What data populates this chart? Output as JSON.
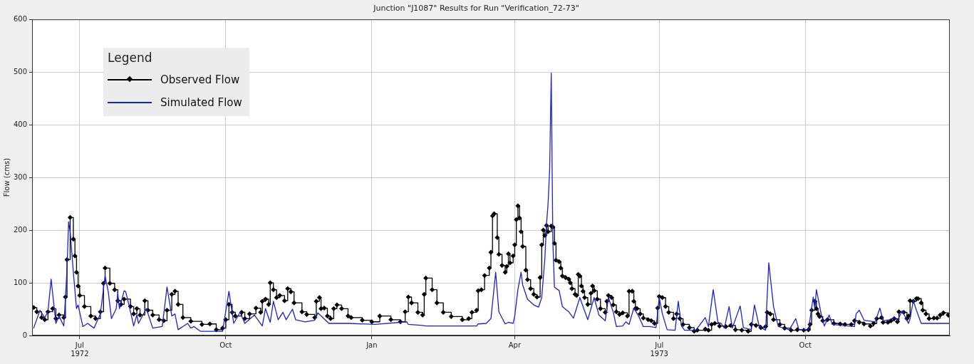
{
  "chart_data": {
    "type": "line",
    "title": "Junction \"J1087\" Results for Run \"Verification_72-73\"",
    "ylabel": "Flow (cms)",
    "legend_title": "Legend",
    "legend": "top left",
    "grid": true,
    "xlim": [
      "1972-06-01",
      "1973-12-31"
    ],
    "xticks": [
      {
        "value": "1972-07-01",
        "label": "Jul\n1972"
      },
      {
        "value": "1972-10-01",
        "label": "Oct"
      },
      {
        "value": "1973-01-01",
        "label": "Jan"
      },
      {
        "value": "1973-04-01",
        "label": "Apr"
      },
      {
        "value": "1973-07-01",
        "label": "Jul\n1973"
      },
      {
        "value": "1973-10-01",
        "label": "Oct"
      }
    ],
    "ylim": [
      0,
      600
    ],
    "yticks": [
      0,
      100,
      200,
      300,
      400,
      500,
      600
    ],
    "series": [
      {
        "name": "Observed Flow",
        "type": "step",
        "marker": "diamond",
        "color": "#000000",
        "x": [
          "1972-06-02",
          "1972-06-04",
          "1972-06-07",
          "1972-06-09",
          "1972-06-11",
          "1972-06-14",
          "1972-06-16",
          "1972-06-18",
          "1972-06-21",
          "1972-06-22",
          "1972-06-23",
          "1972-06-25",
          "1972-06-27",
          "1972-06-28",
          "1972-06-29",
          "1972-06-30",
          "1972-07-01",
          "1972-07-04",
          "1972-07-08",
          "1972-07-11",
          "1972-07-14",
          "1972-07-16",
          "1972-07-17",
          "1972-07-20",
          "1972-07-23",
          "1972-07-25",
          "1972-07-27",
          "1972-07-29",
          "1972-08-02",
          "1972-08-04",
          "1972-08-06",
          "1972-08-08",
          "1972-08-11",
          "1972-08-13",
          "1972-08-16",
          "1972-08-20",
          "1972-08-23",
          "1972-08-25",
          "1972-08-28",
          "1972-08-30",
          "1972-09-01",
          "1972-09-04",
          "1972-09-09",
          "1972-09-16",
          "1972-09-21",
          "1972-09-25",
          "1972-09-29",
          "1972-10-01",
          "1972-10-03",
          "1972-10-05",
          "1972-10-07",
          "1972-10-11",
          "1972-10-13",
          "1972-10-16",
          "1972-10-20",
          "1972-10-23",
          "1972-10-24",
          "1972-10-26",
          "1972-10-28",
          "1972-10-29",
          "1972-10-31",
          "1972-11-02",
          "1972-11-04",
          "1972-11-07",
          "1972-11-09",
          "1972-11-11",
          "1972-11-13",
          "1972-11-18",
          "1972-11-21",
          "1972-11-26",
          "1972-11-27",
          "1972-11-29",
          "1972-11-30",
          "1972-12-02",
          "1972-12-04",
          "1972-12-06",
          "1972-12-08",
          "1972-12-10",
          "1972-12-13",
          "1972-12-17",
          "1972-12-19",
          "1972-12-26",
          "1973-01-01",
          "1973-01-06",
          "1973-01-13",
          "1973-01-19",
          "1973-01-22",
          "1973-01-24",
          "1973-01-26",
          "1973-01-30",
          "1973-02-02",
          "1973-02-03",
          "1973-02-04",
          "1973-02-08",
          "1973-02-11",
          "1973-02-15",
          "1973-02-20",
          "1973-02-27",
          "1973-03-03",
          "1973-03-05",
          "1973-03-08",
          "1973-03-09",
          "1973-03-11",
          "1973-03-13",
          "1973-03-16",
          "1973-03-17",
          "1973-03-18",
          "1973-03-19",
          "1973-03-21",
          "1973-03-22",
          "1973-03-24",
          "1973-03-26",
          "1973-03-27",
          "1973-03-28",
          "1973-03-29",
          "1973-03-31",
          "1973-04-01",
          "1973-04-02",
          "1973-04-03",
          "1973-04-04",
          "1973-04-05",
          "1973-04-06",
          "1973-04-08",
          "1973-04-09",
          "1973-04-11",
          "1973-04-13",
          "1973-04-15",
          "1973-04-17",
          "1973-04-18",
          "1973-04-19",
          "1973-04-20",
          "1973-04-21",
          "1973-04-22",
          "1973-04-24",
          "1973-04-25",
          "1973-04-26",
          "1973-04-27",
          "1973-04-29",
          "1973-04-30",
          "1973-05-01",
          "1973-05-03",
          "1973-05-05",
          "1973-05-06",
          "1973-05-07",
          "1973-05-09",
          "1973-05-10",
          "1973-05-11",
          "1973-05-12",
          "1973-05-13",
          "1973-05-14",
          "1973-05-15",
          "1973-05-17",
          "1973-05-19",
          "1973-05-20",
          "1973-05-21",
          "1973-05-23",
          "1973-05-25",
          "1973-05-28",
          "1973-05-29",
          "1973-05-30",
          "1973-06-01",
          "1973-06-02",
          "1973-06-04",
          "1973-06-06",
          "1973-06-08",
          "1973-06-11",
          "1973-06-12",
          "1973-06-14",
          "1973-06-15",
          "1973-06-16",
          "1973-06-17",
          "1973-06-19",
          "1973-06-21",
          "1973-06-24",
          "1973-06-26",
          "1973-06-28",
          "1973-06-30",
          "1973-07-01",
          "1973-07-03",
          "1973-07-05",
          "1973-07-07",
          "1973-07-10",
          "1973-07-12",
          "1973-07-14",
          "1973-07-16",
          "1973-07-20",
          "1973-07-23",
          "1973-07-25",
          "1973-07-30",
          "1973-08-01",
          "1973-08-03",
          "1973-08-05",
          "1973-08-08",
          "1973-08-12",
          "1973-08-15",
          "1973-08-18",
          "1973-08-22",
          "1973-08-26",
          "1973-08-28",
          "1973-08-31",
          "1973-09-03",
          "1973-09-06",
          "1973-09-07",
          "1973-09-09",
          "1973-09-11",
          "1973-09-15",
          "1973-09-18",
          "1973-09-22",
          "1973-09-26",
          "1973-09-30",
          "1973-10-03",
          "1973-10-04",
          "1973-10-05",
          "1973-10-07",
          "1973-10-08",
          "1973-10-09",
          "1973-10-10",
          "1973-10-12",
          "1973-10-15",
          "1973-10-19",
          "1973-10-23",
          "1973-10-26",
          "1973-10-30",
          "1973-11-01",
          "1973-11-04",
          "1973-11-07",
          "1973-11-11",
          "1973-11-13",
          "1973-11-15",
          "1973-11-18",
          "1973-11-19",
          "1973-11-22",
          "1973-11-24",
          "1973-11-26",
          "1973-11-28",
          "1973-11-29",
          "1973-12-02",
          "1973-12-04",
          "1973-12-05",
          "1973-12-06",
          "1973-12-08",
          "1973-12-10",
          "1973-12-11",
          "1973-12-13",
          "1973-12-14",
          "1973-12-16",
          "1973-12-18",
          "1973-12-21",
          "1973-12-23",
          "1973-12-25",
          "1973-12-27",
          "1973-12-30",
          "1973-12-31"
        ],
        "values": [
          53,
          45,
          34,
          30,
          45,
          51,
          32,
          39,
          34,
          73,
          144,
          224,
          183,
          151,
          120,
          94,
          76,
          55,
          37,
          32,
          45,
          99,
          128,
          99,
          87,
          66,
          59,
          69,
          55,
          41,
          51,
          39,
          66,
          48,
          39,
          30,
          28,
          48,
          78,
          84,
          59,
          34,
          27,
          21,
          22,
          11,
          14,
          30,
          59,
          44,
          37,
          44,
          32,
          41,
          52,
          44,
          65,
          69,
          59,
          100,
          87,
          72,
          76,
          66,
          89,
          83,
          62,
          45,
          40,
          34,
          65,
          72,
          51,
          52,
          37,
          32,
          51,
          58,
          51,
          37,
          34,
          29,
          26,
          37,
          30,
          26,
          45,
          73,
          62,
          44,
          39,
          78,
          109,
          87,
          62,
          44,
          36,
          30,
          32,
          44,
          48,
          85,
          87,
          114,
          128,
          158,
          227,
          231,
          186,
          154,
          133,
          120,
          131,
          155,
          138,
          151,
          172,
          220,
          246,
          223,
          197,
          169,
          124,
          106,
          89,
          78,
          73,
          110,
          172,
          200,
          190,
          209,
          197,
          208,
          206,
          175,
          143,
          140,
          128,
          113,
          110,
          107,
          100,
          89,
          78,
          76,
          116,
          113,
          94,
          84,
          72,
          59,
          80,
          94,
          85,
          69,
          51,
          44,
          65,
          76,
          72,
          58,
          45,
          40,
          43,
          37,
          84,
          84,
          65,
          51,
          51,
          41,
          33,
          30,
          28,
          23,
          52,
          74,
          72,
          55,
          44,
          32,
          41,
          32,
          21,
          15,
          8,
          10,
          12,
          10,
          21,
          23,
          18,
          17,
          19,
          11,
          10,
          8,
          21,
          19,
          15,
          17,
          44,
          41,
          30,
          21,
          14,
          10,
          11,
          10,
          11,
          21,
          48,
          65,
          51,
          41,
          36,
          28,
          30,
          23,
          22,
          21,
          21,
          28,
          25,
          22,
          18,
          23,
          32,
          34,
          25,
          25,
          28,
          32,
          26,
          45,
          44,
          32,
          37,
          66,
          65,
          70,
          70,
          62,
          48,
          41,
          32,
          33,
          33,
          39,
          43,
          39,
          37
        ]
      },
      {
        "name": "Simulated Flow",
        "type": "line",
        "color": "#2020c8",
        "x": [
          "1972-06-02",
          "1972-06-06",
          "1972-06-09",
          "1972-06-11",
          "1972-06-13",
          "1972-06-15",
          "1972-06-16",
          "1972-06-18",
          "1972-06-21",
          "1972-06-23",
          "1972-06-24",
          "1972-06-25",
          "1972-06-27",
          "1972-06-29",
          "1972-06-30",
          "1972-07-03",
          "1972-07-06",
          "1972-07-10",
          "1972-07-14",
          "1972-07-17",
          "1972-07-19",
          "1972-07-21",
          "1972-07-24",
          "1972-07-25",
          "1972-07-26",
          "1972-07-29",
          "1972-07-30",
          "1972-08-02",
          "1972-08-04",
          "1972-08-06",
          "1972-08-07",
          "1972-08-12",
          "1972-08-16",
          "1972-08-22",
          "1972-08-25",
          "1972-08-28",
          "1972-08-30",
          "1972-09-01",
          "1972-09-07",
          "1972-09-09",
          "1972-09-11",
          "1972-09-15",
          "1972-09-29",
          "1972-10-03",
          "1972-10-06",
          "1972-10-10",
          "1972-10-13",
          "1972-10-19",
          "1972-10-24",
          "1972-10-26",
          "1972-10-29",
          "1972-10-31",
          "1972-11-03",
          "1972-11-06",
          "1972-11-08",
          "1972-11-12",
          "1972-11-14",
          "1972-11-20",
          "1972-11-26",
          "1972-11-28",
          "1972-12-05",
          "1972-12-18",
          "1973-01-03",
          "1973-01-23",
          "1973-01-24",
          "1973-02-02",
          "1973-02-04",
          "1973-03-08",
          "1973-03-09",
          "1973-03-14",
          "1973-03-17",
          "1973-03-20",
          "1973-03-22",
          "1973-03-26",
          "1973-03-28",
          "1973-03-31",
          "1973-04-01",
          "1973-04-03",
          "1973-04-05",
          "1973-04-06",
          "1973-04-09",
          "1973-04-13",
          "1973-04-16",
          "1973-04-18",
          "1973-04-20",
          "1973-04-21",
          "1973-04-22",
          "1973-04-23",
          "1973-04-24",
          "1973-04-25",
          "1973-04-26",
          "1973-04-29",
          "1973-05-01",
          "1973-05-05",
          "1973-05-08",
          "1973-05-12",
          "1973-05-14",
          "1973-05-17",
          "1973-05-21",
          "1973-05-24",
          "1973-05-28",
          "1973-05-30",
          "1973-06-02",
          "1973-06-04",
          "1973-06-08",
          "1973-06-10",
          "1973-06-12",
          "1973-06-15",
          "1973-06-18",
          "1973-06-21",
          "1973-06-25",
          "1973-06-29",
          "1973-07-01",
          "1973-07-03",
          "1973-07-06",
          "1973-07-11",
          "1973-07-13",
          "1973-07-15",
          "1973-07-17",
          "1973-07-24",
          "1973-07-30",
          "1973-08-01",
          "1973-08-04",
          "1973-08-07",
          "1973-08-09",
          "1973-08-11",
          "1973-08-14",
          "1973-08-16",
          "1973-08-21",
          "1973-08-23",
          "1973-08-28",
          "1973-08-30",
          "1973-09-02",
          "1973-09-06",
          "1973-09-08",
          "1973-09-11",
          "1973-09-14",
          "1973-09-21",
          "1973-09-25",
          "1973-09-27",
          "1973-10-03",
          "1973-10-06",
          "1973-10-07",
          "1973-10-08",
          "1973-10-11",
          "1973-10-13",
          "1973-10-16",
          "1973-10-18",
          "1973-10-24",
          "1973-11-01",
          "1973-11-02",
          "1973-11-04",
          "1973-11-07",
          "1973-11-14",
          "1973-11-17",
          "1973-11-19",
          "1973-11-23",
          "1973-11-26",
          "1973-11-28",
          "1973-12-01",
          "1973-12-05",
          "1973-12-06",
          "1973-12-08",
          "1973-12-10",
          "1973-12-13",
          "1973-12-31"
        ],
        "values": [
          14,
          48,
          34,
          45,
          107,
          51,
          23,
          37,
          18,
          124,
          216,
          197,
          120,
          51,
          58,
          17,
          23,
          14,
          41,
          113,
          83,
          32,
          51,
          80,
          51,
          85,
          83,
          45,
          18,
          39,
          23,
          51,
          14,
          17,
          92,
          37,
          41,
          11,
          23,
          14,
          17,
          8,
          8,
          84,
          23,
          44,
          23,
          39,
          18,
          51,
          25,
          65,
          30,
          44,
          30,
          50,
          30,
          26,
          29,
          43,
          23,
          23,
          21,
          26,
          21,
          19,
          18,
          18,
          22,
          23,
          32,
          120,
          45,
          22,
          25,
          23,
          37,
          87,
          120,
          96,
          69,
          58,
          54,
          72,
          147,
          211,
          250,
          316,
          498,
          179,
          92,
          85,
          55,
          45,
          33,
          72,
          55,
          30,
          72,
          39,
          28,
          72,
          45,
          17,
          18,
          26,
          21,
          52,
          37,
          17,
          17,
          15,
          72,
          41,
          11,
          10,
          65,
          18,
          10,
          10,
          34,
          17,
          87,
          25,
          23,
          14,
          55,
          14,
          56,
          15,
          11,
          58,
          17,
          10,
          138,
          55,
          17,
          11,
          32,
          11,
          11,
          73,
          51,
          87,
          41,
          18,
          39,
          21,
          19,
          17,
          41,
          48,
          29,
          26,
          52,
          28,
          30,
          34,
          28,
          47,
          23,
          32,
          66,
          48,
          23,
          23
        ]
      }
    ]
  }
}
